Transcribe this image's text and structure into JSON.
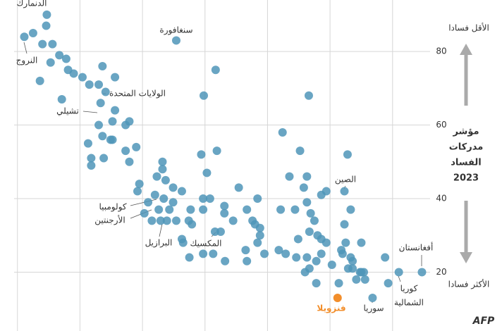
{
  "chart_data": {
    "type": "scatter",
    "title": [
      "مؤشر",
      "مدركات",
      "الفساد",
      "2023"
    ],
    "top_label": "الأقل فسادا",
    "bottom_label": "الأكثر فسادا",
    "source": "AFP",
    "xlim": [
      -2,
      66
    ],
    "xticks": [
      0,
      10,
      20,
      30,
      40,
      50,
      60
    ],
    "ylim": [
      4,
      94
    ],
    "yticks": [
      20,
      40,
      60,
      80
    ],
    "grid": true,
    "series": [
      {
        "color": "#4f95b9",
        "x": [
          4.7,
          2.5,
          1.1,
          4.6,
          4.0,
          5.6,
          3.6,
          5.3,
          6.7,
          7.8,
          8.1,
          9.0,
          10.4,
          11.5,
          13.0,
          13.6,
          15.6,
          14.1,
          7.1,
          13.3,
          15.6,
          13.0,
          15.2,
          17.9,
          17.3,
          11.3,
          13.6,
          14.9,
          15.2,
          17.3,
          19.0,
          11.8,
          11.8,
          13.8,
          17.9,
          25.4,
          31.7,
          29.8,
          46.6,
          29.4,
          31.9,
          30.3,
          42.4,
          45.2,
          52.8,
          43.5,
          46.3,
          52.3,
          48.6,
          49.4,
          45.8,
          35.4,
          23.2,
          23.2,
          22.3,
          23.7,
          24.9,
          26.3,
          22.0,
          19.2,
          19.5,
          20.9,
          23.4,
          22.6,
          24.3,
          25.4,
          23.9,
          22.9,
          21.5,
          20.3,
          24.9,
          27.7,
          27.9,
          27.4,
          29.7,
          30.8,
          29.7,
          33.1,
          33.1,
          32.5,
          26.3,
          26.5,
          27.5,
          29.7,
          31.3,
          33.2,
          31.6,
          34.5,
          36.7,
          37.6,
          38.4,
          38.0,
          38.8,
          38.8,
          38.4,
          36.5,
          36.7,
          39.5,
          42.1,
          44.4,
          46.3,
          46.9,
          47.5,
          46.7,
          48.6,
          48.0,
          49.4,
          53.3,
          52.3,
          52.5,
          51.8,
          52.0,
          55.0,
          41.8,
          42.9,
          44.9,
          44.6,
          46.3,
          47.8,
          46.7,
          46.0,
          50.3,
          48.6,
          53.3,
          52.9,
          53.6,
          54.8,
          55.4,
          54.2,
          55.6,
          55.0,
          53.6,
          58.8,
          47.8,
          51.4,
          56.8,
          59.3,
          61.0,
          64.7
        ],
        "values": [
          90,
          85,
          84,
          87,
          82,
          82,
          72,
          77,
          79,
          78,
          75,
          74,
          73,
          71,
          71,
          76,
          73,
          69,
          67,
          66,
          64,
          60,
          61,
          61,
          60,
          55,
          57,
          56,
          56,
          53,
          54,
          51,
          49,
          51,
          50,
          83,
          75,
          68,
          68,
          52,
          53,
          47,
          58,
          53,
          52,
          46,
          46,
          42,
          41,
          42,
          43,
          43,
          50,
          48,
          46,
          45,
          43,
          42,
          41,
          42,
          44,
          39,
          40,
          37,
          37,
          34,
          34,
          34,
          34,
          36,
          39,
          37,
          33,
          34,
          37,
          40,
          40,
          38,
          36,
          31,
          29,
          28,
          24,
          25,
          25,
          23,
          31,
          34,
          37,
          34,
          40,
          33,
          32,
          30,
          28,
          26,
          23,
          25,
          37,
          37,
          39,
          36,
          34,
          31,
          29,
          30,
          28,
          37,
          33,
          28,
          26,
          25,
          28,
          26,
          25,
          29,
          24,
          24,
          23,
          21,
          20,
          22,
          25,
          24,
          21,
          21,
          20,
          20,
          18,
          18,
          20,
          23,
          24,
          17,
          17,
          13,
          17,
          20,
          20
        ]
      },
      {
        "color": "#f28e2b",
        "x": [
          51.2
        ],
        "values": [
          13
        ]
      }
    ],
    "annotations": [
      {
        "text": "الدنمارك"
      },
      {
        "text": "النروج"
      },
      {
        "text": "سنغافورة"
      },
      {
        "text": "الولايات المتحدة"
      },
      {
        "text": "تشيلي"
      },
      {
        "text": "كولومبيا"
      },
      {
        "text": "الأرجنتين"
      },
      {
        "text": "البرازيل"
      },
      {
        "text": "المكسيك"
      },
      {
        "text": "الصين"
      },
      {
        "text": "أفغانستان"
      },
      {
        "text": "كوريا"
      },
      {
        "text": "الشمالية"
      },
      {
        "text": "سوريا"
      },
      {
        "text": "فنزويلا"
      }
    ]
  }
}
